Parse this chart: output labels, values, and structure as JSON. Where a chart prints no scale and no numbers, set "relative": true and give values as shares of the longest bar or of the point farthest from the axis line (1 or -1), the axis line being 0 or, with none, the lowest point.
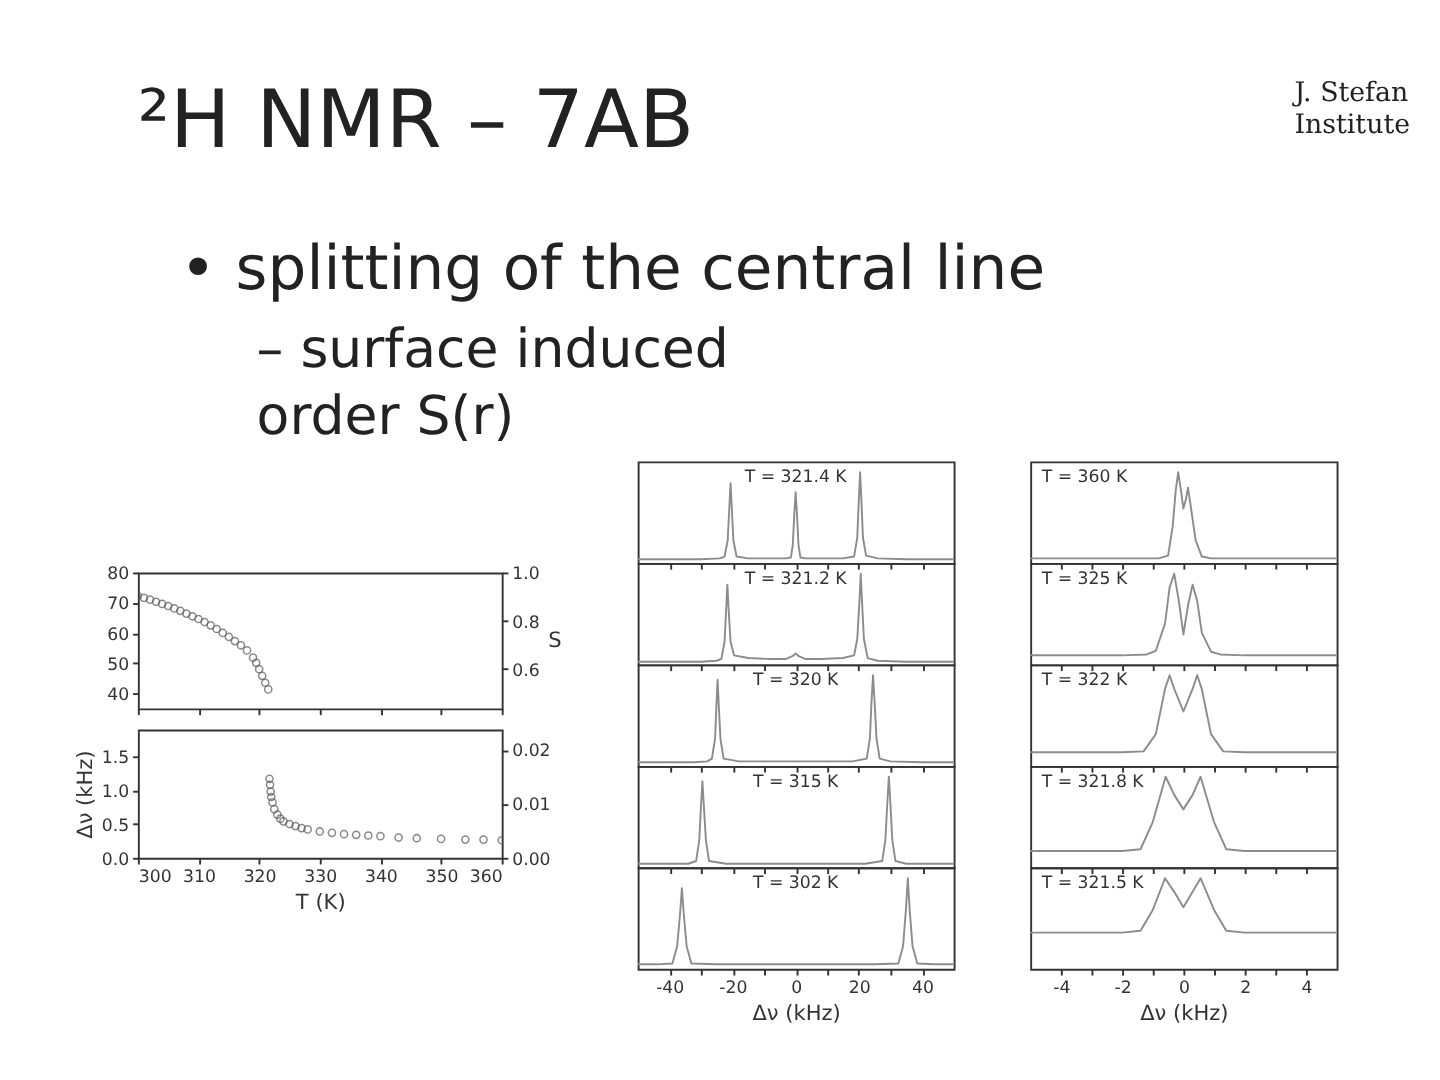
{
  "chart_data": [
    {
      "type": "other",
      "title": "²H NMR – 7AB",
      "annotations": [
        "J. Stefan Institute",
        "• splitting of the central line",
        "– surface induced order S(r)"
      ]
    },
    {
      "type": "scatter",
      "color": "#5a5a5a",
      "marker": "circle",
      "x": [
        300,
        301,
        302,
        303,
        304,
        305,
        306,
        307,
        308,
        309,
        310,
        311,
        312,
        313,
        314,
        315,
        316,
        317,
        318,
        319,
        319.5,
        320,
        320.5,
        321,
        321.5
      ],
      "values": [
        72.3,
        71.6,
        71.0,
        70.3,
        69.6,
        68.9,
        68.1,
        67.3,
        66.4,
        65.5,
        64.6,
        63.6,
        62.5,
        61.3,
        60.0,
        58.7,
        57.3,
        55.9,
        54.2,
        51.8,
        50.1,
        48.0,
        45.8,
        43.5,
        41.3
      ],
      "xlim": [
        300,
        360
      ],
      "xticks": [
        300,
        310,
        320,
        330,
        340,
        350,
        360
      ],
      "ylim": [
        35,
        80
      ],
      "yticks": [
        40,
        50,
        60,
        70,
        80
      ],
      "y2lim": [
        0.4375,
        1
      ],
      "y2ticks": [
        0.6,
        0.8,
        {
          "value": 1,
          "label": "1.0"
        }
      ],
      "y2label": "S",
      "tick_labels": "y"
    },
    {
      "type": "scatter",
      "color": "#5a5a5a",
      "marker": "circle",
      "x": [
        321.7,
        321.8,
        321.9,
        322,
        322.2,
        322.5,
        323,
        323.5,
        324,
        325,
        326,
        327,
        328,
        330,
        332,
        334,
        336,
        338,
        340,
        343,
        346,
        350,
        354,
        357,
        360
      ],
      "values": [
        1.17,
        1.08,
        0.98,
        0.9,
        0.82,
        0.72,
        0.64,
        0.58,
        0.54,
        0.5,
        0.47,
        0.44,
        0.42,
        0.39,
        0.37,
        0.35,
        0.34,
        0.33,
        0.32,
        0.3,
        0.29,
        0.28,
        0.27,
        0.27,
        0.26
      ],
      "xlim": [
        300,
        360
      ],
      "xticks": [
        300,
        310,
        320,
        330,
        340,
        350,
        360
      ],
      "xlabel": "T (K)",
      "ylim": [
        0,
        1.9
      ],
      "yticks": [
        {
          "value": 0,
          "label": "0.0"
        },
        0.5,
        {
          "value": 1,
          "label": "1.0"
        },
        1.5
      ],
      "ylabel": "Δν (kHz)",
      "y2lim": [
        0,
        0.02375
      ],
      "y2ticks": [
        {
          "value": 0,
          "label": "0.00"
        },
        0.01,
        0.02
      ]
    },
    {
      "type": "line",
      "relative": true,
      "color": "#8c8c8c",
      "line_style": "solid",
      "annotations": [
        "T = 321.4 K"
      ],
      "x": [
        -50,
        -40,
        -30,
        -24,
        -22.5,
        -21.5,
        -21,
        -20.6,
        -20.2,
        -19.7,
        -18.7,
        -15,
        -8,
        -3,
        -1.5,
        -0.9,
        -0.4,
        0,
        0.4,
        0.9,
        1.5,
        3,
        8,
        15,
        18.5,
        19.5,
        20,
        20.4,
        20.8,
        21.3,
        22.3,
        26,
        35,
        45,
        50
      ],
      "values": [
        0.04,
        0.04,
        0.04,
        0.05,
        0.07,
        0.25,
        0.6,
        0.88,
        0.6,
        0.25,
        0.07,
        0.05,
        0.05,
        0.05,
        0.06,
        0.2,
        0.55,
        0.78,
        0.55,
        0.2,
        0.06,
        0.05,
        0.05,
        0.05,
        0.07,
        0.28,
        0.7,
        1,
        0.7,
        0.28,
        0.08,
        0.05,
        0.04,
        0.04,
        0.04
      ],
      "xlim": [
        -50,
        50
      ],
      "xticks": [
        -40,
        {
          "value": -30,
          "label": null
        },
        -20,
        {
          "value": -10,
          "label": null
        },
        0,
        {
          "value": 10,
          "label": null
        },
        20,
        {
          "value": 30,
          "label": null
        },
        40
      ],
      "tick_labels": false
    },
    {
      "type": "line",
      "relative": true,
      "color": "#8c8c8c",
      "line_style": "solid",
      "annotations": [
        "T = 321.2 K"
      ],
      "x": [
        -50,
        -40,
        -30,
        -25,
        -23.5,
        -22.5,
        -22,
        -21.6,
        -21.2,
        -20.6,
        -19.5,
        -15,
        -8,
        -3,
        -1,
        0,
        1,
        3,
        8,
        15,
        18.5,
        19.5,
        20.2,
        20.6,
        21,
        21.6,
        22.8,
        26,
        35,
        45,
        50
      ],
      "values": [
        0.03,
        0.03,
        0.03,
        0.04,
        0.06,
        0.25,
        0.6,
        0.88,
        0.6,
        0.25,
        0.1,
        0.07,
        0.06,
        0.06,
        0.09,
        0.12,
        0.09,
        0.06,
        0.06,
        0.07,
        0.1,
        0.28,
        0.7,
        1,
        0.7,
        0.28,
        0.07,
        0.04,
        0.03,
        0.03,
        0.03
      ],
      "xlim": [
        -50,
        50
      ],
      "xticks": [
        -40,
        {
          "value": -30,
          "label": null
        },
        -20,
        {
          "value": -10,
          "label": null
        },
        0,
        {
          "value": 10,
          "label": null
        },
        20,
        {
          "value": 30,
          "label": null
        },
        40
      ],
      "tick_labels": false
    },
    {
      "type": "line",
      "relative": true,
      "color": "#8c8c8c",
      "line_style": "solid",
      "annotations": [
        "T = 320 K"
      ],
      "x": [
        -50,
        -40,
        -32,
        -28,
        -26.5,
        -25.5,
        -25.1,
        -24.7,
        -24.3,
        -23.8,
        -22.8,
        -18,
        -10,
        0,
        10,
        18,
        22.5,
        23.5,
        24,
        24.5,
        25,
        25.6,
        26.6,
        30,
        40,
        50
      ],
      "values": [
        0.04,
        0.04,
        0.04,
        0.05,
        0.08,
        0.3,
        0.65,
        0.95,
        0.65,
        0.3,
        0.08,
        0.05,
        0.05,
        0.05,
        0.05,
        0.05,
        0.08,
        0.3,
        0.7,
        1,
        0.7,
        0.3,
        0.08,
        0.05,
        0.04,
        0.04
      ],
      "xlim": [
        -50,
        50
      ],
      "xticks": [
        -40,
        {
          "value": -30,
          "label": null
        },
        -20,
        {
          "value": -10,
          "label": null
        },
        0,
        {
          "value": 10,
          "label": null
        },
        20,
        {
          "value": 30,
          "label": null
        },
        40
      ],
      "tick_labels": false
    },
    {
      "type": "line",
      "relative": true,
      "color": "#8c8c8c",
      "line_style": "solid",
      "annotations": [
        "T = 315 K"
      ],
      "x": [
        -50,
        -40,
        -34,
        -31.5,
        -30.5,
        -30,
        -29.5,
        -29,
        -28.4,
        -27.4,
        -22,
        -10,
        0,
        10,
        22,
        27.4,
        28.4,
        29,
        29.5,
        30,
        30.6,
        31.6,
        35,
        42,
        50
      ],
      "values": [
        0.04,
        0.04,
        0.04,
        0.07,
        0.3,
        0.65,
        0.95,
        0.65,
        0.3,
        0.07,
        0.04,
        0.04,
        0.04,
        0.04,
        0.04,
        0.07,
        0.3,
        0.7,
        1,
        0.7,
        0.3,
        0.07,
        0.04,
        0.04,
        0.04
      ],
      "xlim": [
        -50,
        50
      ],
      "xticks": [
        -40,
        {
          "value": -30,
          "label": null
        },
        -20,
        {
          "value": -10,
          "label": null
        },
        0,
        {
          "value": 10,
          "label": null
        },
        20,
        {
          "value": 30,
          "label": null
        },
        40
      ],
      "tick_labels": false
    },
    {
      "type": "line",
      "relative": true,
      "color": "#8c8c8c",
      "line_style": "solid",
      "annotations": [
        "T = 302 K"
      ],
      "x": [
        -50,
        -44,
        -39,
        -37.5,
        -36.6,
        -36,
        -35.4,
        -34.5,
        -33,
        -25,
        -10,
        0,
        10,
        25,
        32.5,
        34,
        34.9,
        35.5,
        36.1,
        37,
        38.5,
        44,
        50
      ],
      "values": [
        0.05,
        0.05,
        0.06,
        0.25,
        0.6,
        0.89,
        0.6,
        0.25,
        0.06,
        0.05,
        0.05,
        0.05,
        0.05,
        0.05,
        0.06,
        0.25,
        0.65,
        1,
        0.65,
        0.25,
        0.06,
        0.05,
        0.05
      ],
      "xlim": [
        -50,
        50
      ],
      "xticks": [
        -40,
        {
          "value": -30,
          "label": null
        },
        -20,
        {
          "value": -10,
          "label": null
        },
        0,
        {
          "value": 10,
          "label": null
        },
        20,
        {
          "value": 30,
          "label": null
        },
        40
      ],
      "xlabel": "Δν (kHz)"
    },
    {
      "type": "line",
      "relative": true,
      "color": "#8c8c8c",
      "line_style": "solid",
      "annotations": [
        "T = 360 K"
      ],
      "x": [
        -5,
        -3,
        -1.5,
        -0.8,
        -0.5,
        -0.35,
        -0.25,
        -0.17,
        -0.08,
        0,
        0.08,
        0.15,
        0.25,
        0.4,
        0.6,
        0.9,
        1.5,
        3,
        5
      ],
      "values": [
        0.05,
        0.05,
        0.05,
        0.05,
        0.08,
        0.4,
        0.8,
        1,
        0.8,
        0.6,
        0.7,
        0.83,
        0.6,
        0.25,
        0.07,
        0.05,
        0.05,
        0.05,
        0.05
      ],
      "xlim": [
        -5,
        5
      ],
      "xticks": [
        -4,
        {
          "value": -3,
          "label": null
        },
        -2,
        {
          "value": -1,
          "label": null
        },
        0,
        {
          "value": 1,
          "label": null
        },
        2,
        {
          "value": 3,
          "label": null
        },
        4
      ],
      "tick_labels": false
    },
    {
      "type": "line",
      "relative": true,
      "color": "#8c8c8c",
      "line_style": "solid",
      "annotations": [
        "T = 325 K"
      ],
      "x": [
        -5,
        -3,
        -2,
        -1.2,
        -0.9,
        -0.6,
        -0.45,
        -0.3,
        -0.15,
        0,
        0.15,
        0.3,
        0.45,
        0.6,
        0.9,
        1.2,
        2,
        3,
        5
      ],
      "values": [
        0.1,
        0.1,
        0.1,
        0.11,
        0.15,
        0.45,
        0.85,
        1,
        0.7,
        0.33,
        0.65,
        0.88,
        0.7,
        0.35,
        0.14,
        0.11,
        0.1,
        0.1,
        0.1
      ],
      "xlim": [
        -5,
        5
      ],
      "xticks": [
        -4,
        {
          "value": -3,
          "label": null
        },
        -2,
        {
          "value": -1,
          "label": null
        },
        0,
        {
          "value": 1,
          "label": null
        },
        2,
        {
          "value": 3,
          "label": null
        },
        4
      ],
      "tick_labels": false
    },
    {
      "type": "line",
      "relative": true,
      "color": "#8c8c8c",
      "line_style": "solid",
      "annotations": [
        "T = 322 K"
      ],
      "x": [
        -5,
        -3,
        -2,
        -1.3,
        -0.9,
        -0.6,
        -0.45,
        -0.3,
        0,
        0.3,
        0.45,
        0.6,
        0.9,
        1.3,
        2,
        3,
        5
      ],
      "values": [
        0.15,
        0.15,
        0.15,
        0.16,
        0.35,
        0.85,
        1,
        0.85,
        0.6,
        0.85,
        1,
        0.85,
        0.35,
        0.16,
        0.15,
        0.15,
        0.15
      ],
      "xlim": [
        -5,
        5
      ],
      "xticks": [
        -4,
        {
          "value": -3,
          "label": null
        },
        -2,
        {
          "value": -1,
          "label": null
        },
        0,
        {
          "value": 1,
          "label": null
        },
        2,
        {
          "value": 3,
          "label": null
        },
        4
      ],
      "tick_labels": false
    },
    {
      "type": "line",
      "relative": true,
      "color": "#8c8c8c",
      "line_style": "solid",
      "annotations": [
        "T = 321.8 K"
      ],
      "x": [
        -5,
        -3,
        -2,
        -1.4,
        -1,
        -0.58,
        -0.3,
        0,
        0.3,
        0.56,
        1,
        1.4,
        2,
        3,
        5
      ],
      "values": [
        0.18,
        0.18,
        0.18,
        0.2,
        0.5,
        1,
        0.8,
        0.64,
        0.8,
        1,
        0.5,
        0.2,
        0.18,
        0.18,
        0.18
      ],
      "xlim": [
        -5,
        5
      ],
      "xticks": [
        -4,
        {
          "value": -3,
          "label": null
        },
        -2,
        {
          "value": -1,
          "label": null
        },
        0,
        {
          "value": 1,
          "label": null
        },
        2,
        {
          "value": 3,
          "label": null
        },
        4
      ],
      "tick_labels": false
    },
    {
      "type": "line",
      "relative": true,
      "color": "#8c8c8c",
      "line_style": "solid",
      "annotations": [
        "T = 321.5 K"
      ],
      "x": [
        -5,
        -3,
        -2,
        -1.4,
        -1,
        -0.6,
        -0.3,
        0,
        0.3,
        0.56,
        1,
        1.4,
        2,
        3,
        5
      ],
      "values": [
        0.4,
        0.4,
        0.4,
        0.42,
        0.65,
        1,
        0.85,
        0.68,
        0.85,
        1,
        0.65,
        0.42,
        0.4,
        0.4,
        0.4
      ],
      "xlim": [
        -5,
        5
      ],
      "xticks": [
        -4,
        {
          "value": -3,
          "label": null
        },
        -2,
        {
          "value": -1,
          "label": null
        },
        0,
        {
          "value": 1,
          "label": null
        },
        2,
        {
          "value": 3,
          "label": null
        },
        4
      ],
      "xlabel": "Δν (kHz)"
    }
  ]
}
